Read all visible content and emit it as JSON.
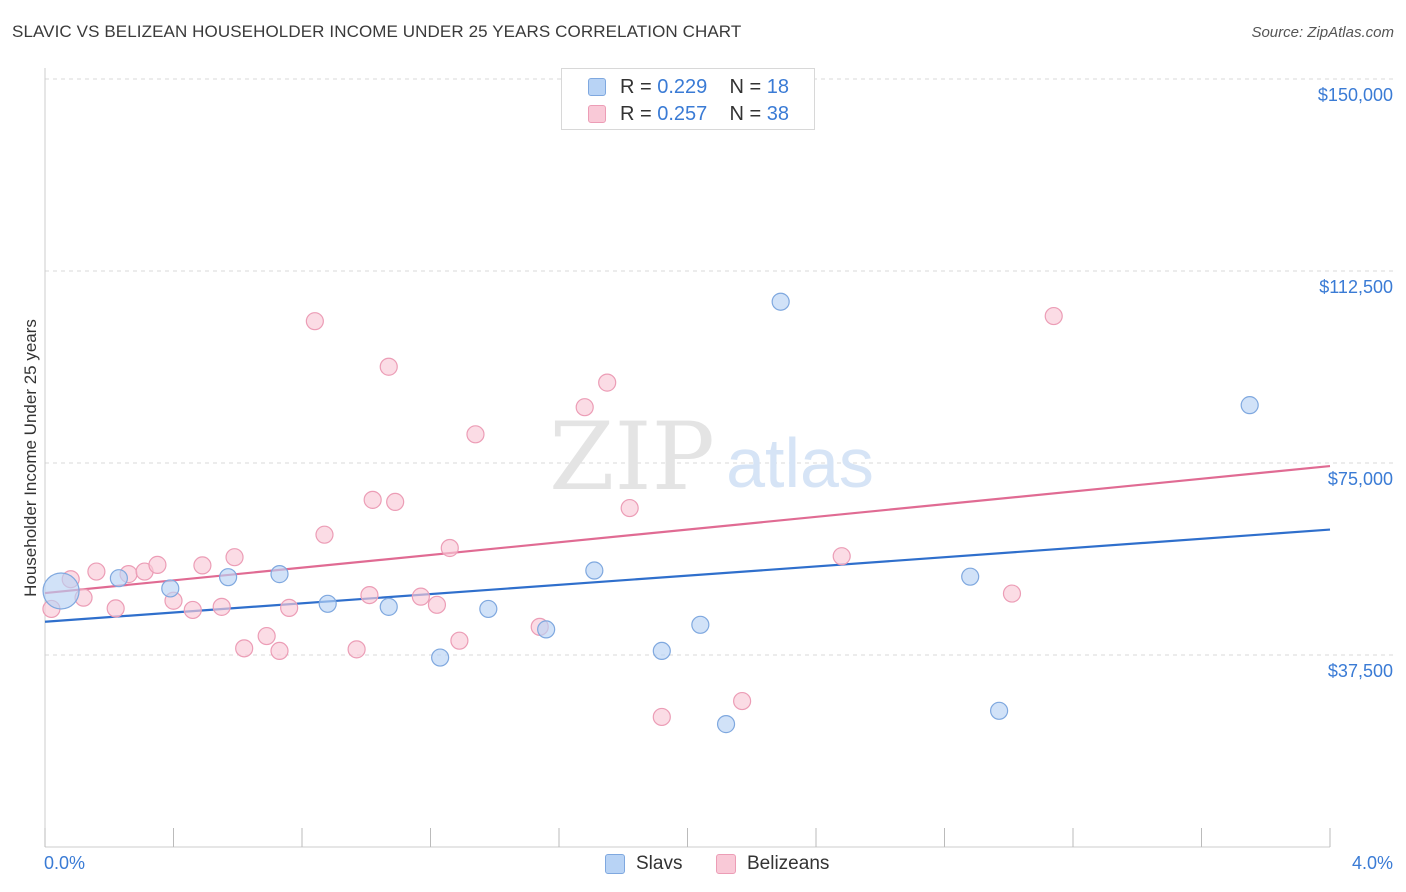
{
  "title": "SLAVIC VS BELIZEAN HOUSEHOLDER INCOME UNDER 25 YEARS CORRELATION CHART",
  "source": "Source: ZipAtlas.com",
  "watermark": {
    "zip": "ZIP",
    "atlas": "atlas"
  },
  "legend": {
    "rows": [
      {
        "r_label": "R = ",
        "r_value": "0.229",
        "n_label": "N = ",
        "n_value": "18"
      },
      {
        "r_label": "R = ",
        "r_value": "0.257",
        "n_label": "N = ",
        "n_value": "38"
      }
    ]
  },
  "colors": {
    "slavs_fill": "#b8d3f5",
    "slavs_stroke": "#7fa8df",
    "slavs_line": "#2f6fcc",
    "belizeans_fill": "#f9c9d7",
    "belizeans_stroke": "#ec9db6",
    "belizeans_line": "#e06b93",
    "axis_label": "#3a7bd5",
    "grid": "#d9d9d9"
  },
  "chart_data": {
    "type": "scatter",
    "title": "SLAVIC VS BELIZEAN HOUSEHOLDER INCOME UNDER 25 YEARS CORRELATION CHART",
    "xlabel": "",
    "ylabel": "Householder Income Under 25 years",
    "xlim": [
      0.0,
      4.0
    ],
    "ylim": [
      0,
      155000
    ],
    "x_tick_labels": [
      "0.0%",
      "4.0%"
    ],
    "y_ticks": [
      37500,
      75000,
      112500,
      150000
    ],
    "y_tick_labels": [
      "$37,500",
      "$75,000",
      "$112,500",
      "$150,000"
    ],
    "grid": true,
    "legend_position": "top-center",
    "series": [
      {
        "name": "Slavs",
        "r": 0.229,
        "n": 18,
        "trend": {
          "x": [
            0.0,
            4.0
          ],
          "y": [
            44000,
            62000
          ]
        },
        "points": [
          {
            "x": 0.05,
            "y": 50000,
            "big": true
          },
          {
            "x": 0.23,
            "y": 52500
          },
          {
            "x": 0.39,
            "y": 50500
          },
          {
            "x": 0.57,
            "y": 52700
          },
          {
            "x": 0.73,
            "y": 53300
          },
          {
            "x": 0.88,
            "y": 47500
          },
          {
            "x": 1.07,
            "y": 46900
          },
          {
            "x": 1.23,
            "y": 37000
          },
          {
            "x": 1.38,
            "y": 46500
          },
          {
            "x": 1.56,
            "y": 42500
          },
          {
            "x": 1.71,
            "y": 54000
          },
          {
            "x": 1.92,
            "y": 38300
          },
          {
            "x": 2.04,
            "y": 43400
          },
          {
            "x": 2.12,
            "y": 24000
          },
          {
            "x": 2.29,
            "y": 106500
          },
          {
            "x": 2.88,
            "y": 52800
          },
          {
            "x": 2.97,
            "y": 26600
          },
          {
            "x": 3.75,
            "y": 86300
          }
        ]
      },
      {
        "name": "Belizeans",
        "r": 0.257,
        "n": 38,
        "trend": {
          "x": [
            0.0,
            4.0
          ],
          "y": [
            49600,
            74400
          ]
        },
        "points": [
          {
            "x": 0.02,
            "y": 46500
          },
          {
            "x": 0.08,
            "y": 52300
          },
          {
            "x": 0.12,
            "y": 48700
          },
          {
            "x": 0.16,
            "y": 53800
          },
          {
            "x": 0.22,
            "y": 46600
          },
          {
            "x": 0.26,
            "y": 53300
          },
          {
            "x": 0.31,
            "y": 53800
          },
          {
            "x": 0.35,
            "y": 55100
          },
          {
            "x": 0.4,
            "y": 48100
          },
          {
            "x": 0.46,
            "y": 46300
          },
          {
            "x": 0.49,
            "y": 55000
          },
          {
            "x": 0.55,
            "y": 46900
          },
          {
            "x": 0.59,
            "y": 56600
          },
          {
            "x": 0.62,
            "y": 38800
          },
          {
            "x": 0.69,
            "y": 41200
          },
          {
            "x": 0.73,
            "y": 38300
          },
          {
            "x": 0.76,
            "y": 46700
          },
          {
            "x": 0.84,
            "y": 102700
          },
          {
            "x": 0.87,
            "y": 61000
          },
          {
            "x": 0.97,
            "y": 38600
          },
          {
            "x": 1.01,
            "y": 49200
          },
          {
            "x": 1.02,
            "y": 67800
          },
          {
            "x": 1.07,
            "y": 93800
          },
          {
            "x": 1.09,
            "y": 67400
          },
          {
            "x": 1.17,
            "y": 48900
          },
          {
            "x": 1.22,
            "y": 47300
          },
          {
            "x": 1.26,
            "y": 58400
          },
          {
            "x": 1.29,
            "y": 40300
          },
          {
            "x": 1.34,
            "y": 80600
          },
          {
            "x": 1.54,
            "y": 43000
          },
          {
            "x": 1.68,
            "y": 85900
          },
          {
            "x": 1.75,
            "y": 90700
          },
          {
            "x": 1.82,
            "y": 66200
          },
          {
            "x": 1.92,
            "y": 25400
          },
          {
            "x": 2.17,
            "y": 28500
          },
          {
            "x": 2.48,
            "y": 56800
          },
          {
            "x": 3.01,
            "y": 49500
          },
          {
            "x": 3.14,
            "y": 103700
          }
        ]
      }
    ]
  }
}
